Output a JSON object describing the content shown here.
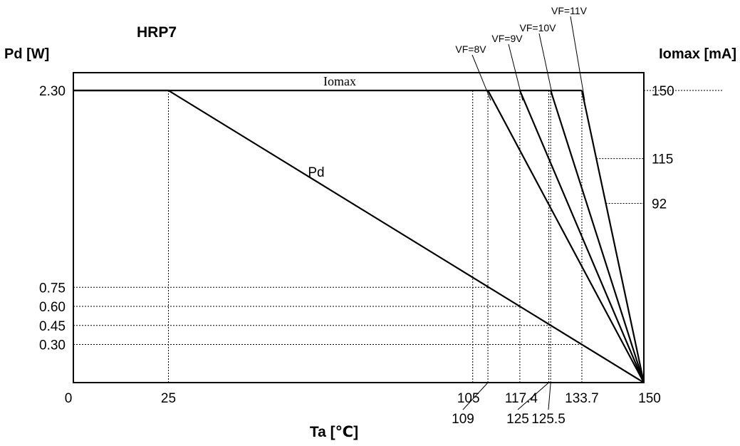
{
  "chart_data": {
    "type": "line",
    "title": "HRP7",
    "xlabel": "Ta [℃]",
    "ylabel_left": "Pd [W]",
    "ylabel_right": "Iomax [mA]",
    "xlim": [
      0,
      150
    ],
    "ylim_left": [
      0,
      2.3
    ],
    "ylim_right": [
      0,
      150
    ],
    "grid": "dotted reference lines",
    "x_ticks": [
      "0",
      "25",
      "105",
      "109",
      "117.4",
      "125",
      "125.5",
      "133.7",
      "150"
    ],
    "y_left_ticks": [
      "2.30",
      "0.75",
      "0.60",
      "0.45",
      "0.30"
    ],
    "y_right_ticks": [
      "150",
      "115",
      "92"
    ],
    "series": [
      {
        "name": "Pd",
        "axis": "left",
        "x": [
          0,
          25,
          150
        ],
        "y": [
          2.3,
          2.3,
          0
        ]
      },
      {
        "name": "Iomax",
        "axis": "right",
        "x": [
          0,
          150
        ],
        "y": [
          150,
          150
        ]
      },
      {
        "name": "VF=8V",
        "axis": "right",
        "x": [
          109,
          150
        ],
        "y": [
          150,
          0
        ]
      },
      {
        "name": "VF=9V",
        "axis": "right",
        "x": [
          117.4,
          150
        ],
        "y": [
          150,
          0
        ]
      },
      {
        "name": "VF=10V",
        "axis": "right",
        "x": [
          125.5,
          150
        ],
        "y": [
          150,
          0
        ]
      },
      {
        "name": "VF=11V",
        "axis": "right",
        "x": [
          133.7,
          150
        ],
        "y": [
          150,
          0
        ]
      }
    ]
  }
}
